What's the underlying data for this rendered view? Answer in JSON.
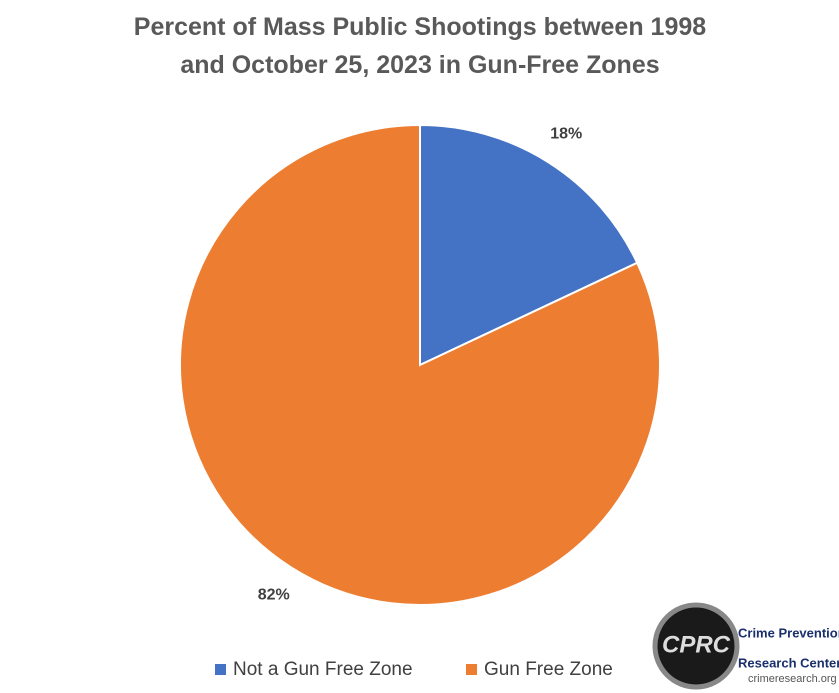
{
  "chart_data": {
    "type": "pie",
    "title": "Percent of Mass Public Shootings between 1998 and October 25, 2023 in Gun-Free Zones",
    "categories": [
      "Not a Gun Free Zone",
      "Gun Free Zone"
    ],
    "values": [
      18,
      82
    ],
    "value_labels": [
      "18%",
      "82%"
    ],
    "colors": [
      "#4472c4",
      "#ed7d31"
    ],
    "legend": "bottom"
  },
  "logo": {
    "mark": "CPRC",
    "name_line1": "Crime Prevention",
    "name_line2": "Research Center",
    "url": "crimeresearch.org"
  }
}
